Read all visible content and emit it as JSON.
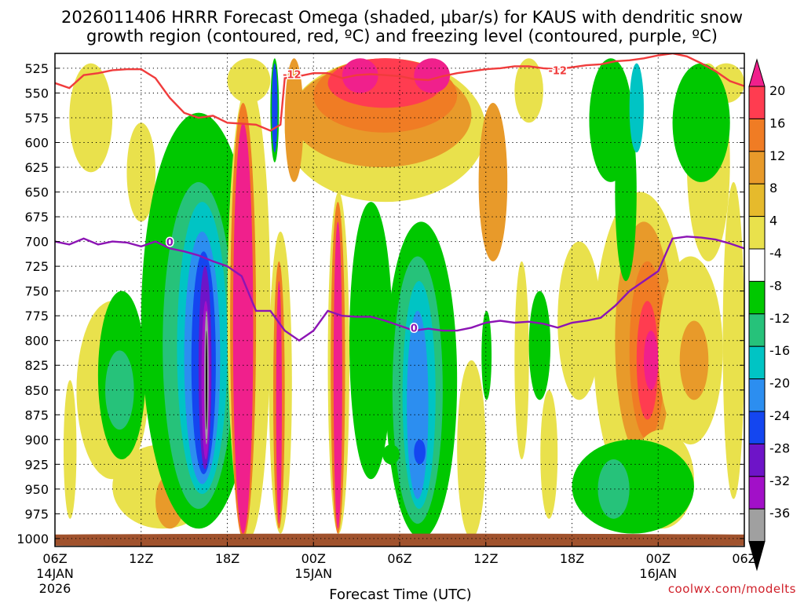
{
  "chart_data": {
    "type": "heatmap",
    "title_line1": "2026011406 HRRR Forecast Omega (shaded, μbar/s) for KAUS with dendritic snow",
    "title_line2": "growth region (contoured, red, ºC) and freezing level (contoured, purple, ºC)",
    "xlabel": "Forecast Time (UTC)",
    "ylabel": "",
    "credit": "coolwx.com/modelts",
    "x_hours_range": [
      0,
      48
    ],
    "y_pressure_range": [
      510,
      1008
    ],
    "y_ticks": [
      "525",
      "550",
      "575",
      "600",
      "625",
      "650",
      "675",
      "700",
      "725",
      "750",
      "775",
      "800",
      "825",
      "850",
      "875",
      "900",
      "925",
      "950",
      "975",
      "1000"
    ],
    "x_ticks": [
      {
        "hour": 0,
        "label": "06Z",
        "date": "14JAN",
        "year": "2026"
      },
      {
        "hour": 6,
        "label": "12Z",
        "date": "",
        "year": ""
      },
      {
        "hour": 12,
        "label": "18Z",
        "date": "",
        "year": ""
      },
      {
        "hour": 18,
        "label": "00Z",
        "date": "15JAN",
        "year": ""
      },
      {
        "hour": 24,
        "label": "06Z",
        "date": "",
        "year": ""
      },
      {
        "hour": 30,
        "label": "12Z",
        "date": "",
        "year": ""
      },
      {
        "hour": 36,
        "label": "18Z",
        "date": "",
        "year": ""
      },
      {
        "hour": 42,
        "label": "00Z",
        "date": "16JAN",
        "year": ""
      },
      {
        "hour": 48,
        "label": "06Z",
        "date": "",
        "year": ""
      }
    ],
    "colorbar": {
      "labels": [
        "20",
        "16",
        "12",
        "8",
        "4",
        "-4",
        "-8",
        "-12",
        "-16",
        "-20",
        "-24",
        "-28",
        "-32",
        "-36"
      ],
      "colors": [
        "#ff3c50",
        "#f07c24",
        "#e89a2a",
        "#e6ba2c",
        "#e9e14c",
        "#ffffff",
        "#00c800",
        "#26c27a",
        "#00c4c4",
        "#2c8ef0",
        "#1446f0",
        "#6e14c8",
        "#a210c8",
        "#a0a0a0"
      ],
      "top_color": "#f0208c",
      "bottom_color": "#000000"
    },
    "cells": [
      {
        "t": [
          1,
          4
        ],
        "p": [
          520,
          630
        ],
        "v": 5
      },
      {
        "t": [
          5,
          7
        ],
        "p": [
          580,
          680
        ],
        "v": 5
      },
      {
        "t": [
          12,
          15
        ],
        "p": [
          515,
          560
        ],
        "v": 5
      },
      {
        "t": [
          17,
          22
        ],
        "p": [
          560,
          640
        ],
        "v": 5
      },
      {
        "t": [
          16,
          30
        ],
        "p": [
          515,
          660
        ],
        "v": 6
      },
      {
        "t": [
          16.5,
          29
        ],
        "p": [
          520,
          625
        ],
        "v": 10
      },
      {
        "t": [
          18,
          28
        ],
        "p": [
          515,
          590
        ],
        "v": 14
      },
      {
        "t": [
          19,
          27
        ],
        "p": [
          515,
          565
        ],
        "v": 17
      },
      {
        "t": [
          20,
          22.5
        ],
        "p": [
          515,
          550
        ],
        "v": 21
      },
      {
        "t": [
          25,
          27.5
        ],
        "p": [
          515,
          550
        ],
        "v": 22
      },
      {
        "t": [
          29.5,
          31.5
        ],
        "p": [
          560,
          720
        ],
        "v": 10
      },
      {
        "t": [
          32,
          34
        ],
        "p": [
          515,
          580
        ],
        "v": 6
      },
      {
        "t": [
          35,
          38
        ],
        "p": [
          700,
          860
        ],
        "v": 5
      },
      {
        "t": [
          37.5,
          44
        ],
        "p": [
          650,
          960
        ],
        "v": 6
      },
      {
        "t": [
          39,
          43
        ],
        "p": [
          680,
          920
        ],
        "v": 10
      },
      {
        "t": [
          40,
          42.5
        ],
        "p": [
          720,
          900
        ],
        "v": 14
      },
      {
        "t": [
          40.5,
          42
        ],
        "p": [
          760,
          880
        ],
        "v": 19
      },
      {
        "t": [
          41,
          42
        ],
        "p": [
          790,
          850
        ],
        "v": 22
      },
      {
        "t": [
          42,
          46.5
        ],
        "p": [
          715,
          905
        ],
        "v": 6
      },
      {
        "t": [
          43.5,
          45.5
        ],
        "p": [
          780,
          860
        ],
        "v": 10
      },
      {
        "t": [
          44,
          47
        ],
        "p": [
          520,
          720
        ],
        "v": 5
      },
      {
        "t": [
          45.5,
          48
        ],
        "p": [
          520,
          560
        ],
        "v": 5
      },
      {
        "t": [
          40,
          44.5
        ],
        "p": [
          890,
          990
        ],
        "v": 5
      },
      {
        "t": [
          0.6,
          1.5
        ],
        "p": [
          840,
          980
        ],
        "v": 5
      },
      {
        "t": [
          1.5,
          6.5
        ],
        "p": [
          760,
          940
        ],
        "v": 5
      },
      {
        "t": [
          3,
          6.3
        ],
        "p": [
          750,
          920
        ],
        "v": -6
      },
      {
        "t": [
          3.5,
          5.5
        ],
        "p": [
          810,
          890
        ],
        "v": -10
      },
      {
        "t": [
          4,
          11
        ],
        "p": [
          905,
          990
        ],
        "v": 5
      },
      {
        "t": [
          7,
          9
        ],
        "p": [
          935,
          990
        ],
        "v": 10
      },
      {
        "t": [
          6,
          14
        ],
        "p": [
          570,
          990
        ],
        "v": -6
      },
      {
        "t": [
          7.5,
          12.5
        ],
        "p": [
          640,
          970
        ],
        "v": -9
      },
      {
        "t": [
          8.5,
          12
        ],
        "p": [
          660,
          955
        ],
        "v": -13
      },
      {
        "t": [
          9,
          11.5
        ],
        "p": [
          690,
          945
        ],
        "v": -17
      },
      {
        "t": [
          9.5,
          11.2
        ],
        "p": [
          710,
          935
        ],
        "v": -21
      },
      {
        "t": [
          10,
          10.9
        ],
        "p": [
          725,
          930
        ],
        "v": -25
      },
      {
        "t": [
          10.2,
          10.8
        ],
        "p": [
          760,
          920
        ],
        "v": -29
      },
      {
        "t": [
          10.4,
          10.7
        ],
        "p": [
          770,
          905
        ],
        "v": -33
      },
      {
        "t": [
          10.5,
          10.6
        ],
        "p": [
          790,
          890
        ],
        "v": -37
      },
      {
        "t": [
          12,
          15
        ],
        "p": [
          540,
          1000
        ],
        "v": 6
      },
      {
        "t": [
          12.2,
          14
        ],
        "p": [
          560,
          1000
        ],
        "v": 14
      },
      {
        "t": [
          12.4,
          13.8
        ],
        "p": [
          580,
          995
        ],
        "v": 21
      },
      {
        "t": [
          15,
          15.6
        ],
        "p": [
          515,
          620
        ],
        "v": -7
      },
      {
        "t": [
          15.1,
          15.5
        ],
        "p": [
          520,
          610
        ],
        "v": -22
      },
      {
        "t": [
          16,
          17.3
        ],
        "p": [
          515,
          640
        ],
        "v": 8
      },
      {
        "t": [
          14.9,
          16.5
        ],
        "p": [
          690,
          995
        ],
        "v": 6
      },
      {
        "t": [
          15.2,
          16
        ],
        "p": [
          720,
          990
        ],
        "v": 14
      },
      {
        "t": [
          15.4,
          15.8
        ],
        "p": [
          740,
          985
        ],
        "v": 21
      },
      {
        "t": [
          19,
          20.5
        ],
        "p": [
          650,
          995
        ],
        "v": 6
      },
      {
        "t": [
          19.2,
          20.2
        ],
        "p": [
          660,
          995
        ],
        "v": 14
      },
      {
        "t": [
          19.4,
          20
        ],
        "p": [
          680,
          990
        ],
        "v": 21
      },
      {
        "t": [
          20.5,
          23.5
        ],
        "p": [
          660,
          940
        ],
        "v": -6
      },
      {
        "t": [
          23,
          28
        ],
        "p": [
          680,
          1000
        ],
        "v": -6
      },
      {
        "t": [
          23.5,
          27
        ],
        "p": [
          715,
          985
        ],
        "v": -9
      },
      {
        "t": [
          24.2,
          26.5
        ],
        "p": [
          740,
          970
        ],
        "v": -13
      },
      {
        "t": [
          24.5,
          26
        ],
        "p": [
          770,
          960
        ],
        "v": -17
      },
      {
        "t": [
          25,
          25.8
        ],
        "p": [
          900,
          925
        ],
        "v": -21
      },
      {
        "t": [
          22.8,
          24
        ],
        "p": [
          905,
          925
        ],
        "v": -6
      },
      {
        "t": [
          28,
          30
        ],
        "p": [
          820,
          1000
        ],
        "v": 5
      },
      {
        "t": [
          29.7,
          30.4
        ],
        "p": [
          770,
          860
        ],
        "v": -6
      },
      {
        "t": [
          32,
          33
        ],
        "p": [
          720,
          920
        ],
        "v": 5
      },
      {
        "t": [
          33,
          34.5
        ],
        "p": [
          750,
          860
        ],
        "v": -6
      },
      {
        "t": [
          33.8,
          35
        ],
        "p": [
          850,
          980
        ],
        "v": 5
      },
      {
        "t": [
          36,
          44.5
        ],
        "p": [
          900,
          995
        ],
        "v": -6
      },
      {
        "t": [
          37.8,
          40
        ],
        "p": [
          920,
          980
        ],
        "v": -10
      },
      {
        "t": [
          37.2,
          40.2
        ],
        "p": [
          515,
          640
        ],
        "v": -6
      },
      {
        "t": [
          39,
          40.5
        ],
        "p": [
          560,
          740
        ],
        "v": -6
      },
      {
        "t": [
          40,
          41
        ],
        "p": [
          520,
          610
        ],
        "v": -13
      },
      {
        "t": [
          43,
          47
        ],
        "p": [
          520,
          640
        ],
        "v": -6
      },
      {
        "t": [
          46.5,
          48
        ],
        "p": [
          640,
          960
        ],
        "v": 5
      },
      {
        "t": [
          0,
          48
        ],
        "p": [
          995,
          1008
        ],
        "v": 100
      }
    ],
    "dgz_contour": {
      "label": "-12",
      "points": [
        [
          0,
          540
        ],
        [
          1,
          545
        ],
        [
          2,
          532
        ],
        [
          3,
          530
        ],
        [
          4,
          527
        ],
        [
          5,
          526
        ],
        [
          6,
          526
        ],
        [
          7,
          535
        ],
        [
          8,
          555
        ],
        [
          9,
          570
        ],
        [
          10,
          575
        ],
        [
          11,
          573
        ],
        [
          12,
          580
        ],
        [
          13,
          581
        ],
        [
          14,
          582
        ],
        [
          15,
          588
        ],
        [
          15.7,
          582
        ],
        [
          16,
          535
        ],
        [
          17,
          533
        ],
        [
          18,
          530
        ],
        [
          19,
          530
        ],
        [
          20,
          535
        ],
        [
          21,
          532
        ],
        [
          22,
          531
        ],
        [
          23,
          532
        ],
        [
          24,
          533
        ],
        [
          25,
          536
        ],
        [
          26,
          537
        ],
        [
          27,
          533
        ],
        [
          28,
          530
        ],
        [
          29,
          528
        ],
        [
          30,
          526
        ],
        [
          31,
          525
        ],
        [
          32,
          523
        ],
        [
          33,
          523
        ],
        [
          34,
          525
        ],
        [
          35,
          526
        ],
        [
          36,
          524
        ],
        [
          37,
          522
        ],
        [
          38,
          521
        ],
        [
          39,
          518
        ],
        [
          40,
          517
        ],
        [
          41,
          515
        ],
        [
          42,
          512
        ],
        [
          43,
          510
        ],
        [
          44,
          513
        ],
        [
          45,
          520
        ],
        [
          46,
          528
        ],
        [
          47,
          538
        ],
        [
          48,
          543
        ]
      ],
      "label_at": [
        [
          16.5,
          532
        ],
        [
          35,
          528
        ]
      ]
    },
    "freezing_contour": {
      "label": "0",
      "points": [
        [
          0,
          700
        ],
        [
          1,
          703
        ],
        [
          2,
          697
        ],
        [
          3,
          703
        ],
        [
          4,
          700
        ],
        [
          5,
          701
        ],
        [
          6,
          705
        ],
        [
          7,
          700
        ],
        [
          8,
          707
        ],
        [
          9,
          710
        ],
        [
          10,
          714
        ],
        [
          11,
          720
        ],
        [
          12,
          725
        ],
        [
          13,
          735
        ],
        [
          14,
          770
        ],
        [
          15,
          770
        ],
        [
          16,
          790
        ],
        [
          17,
          800
        ],
        [
          18,
          790
        ],
        [
          19,
          770
        ],
        [
          20,
          775
        ],
        [
          21,
          776
        ],
        [
          22,
          776
        ],
        [
          23,
          780
        ],
        [
          24,
          785
        ],
        [
          25,
          790
        ],
        [
          26,
          788
        ],
        [
          27,
          790
        ],
        [
          28,
          790
        ],
        [
          29,
          787
        ],
        [
          30,
          782
        ],
        [
          31,
          780
        ],
        [
          32,
          782
        ],
        [
          33,
          781
        ],
        [
          34,
          783
        ],
        [
          35,
          787
        ],
        [
          36,
          782
        ],
        [
          37,
          780
        ],
        [
          38,
          777
        ],
        [
          39,
          765
        ],
        [
          40,
          750
        ],
        [
          41,
          740
        ],
        [
          42,
          730
        ],
        [
          43,
          697
        ],
        [
          44,
          695
        ],
        [
          45,
          696
        ],
        [
          46,
          698
        ],
        [
          47,
          702
        ],
        [
          48,
          707
        ]
      ],
      "label_at": [
        [
          8,
          701
        ],
        [
          25,
          788
        ]
      ]
    }
  }
}
